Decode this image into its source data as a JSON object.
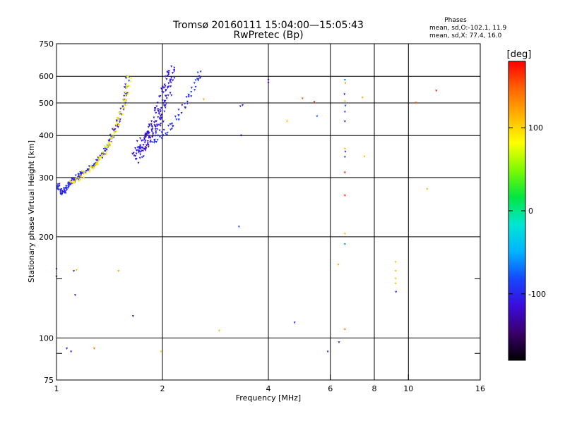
{
  "chart_data": {
    "type": "scatter",
    "title": "Tromsø 20160111 15:04:00—15:05:43",
    "subtitle": "RwPretec (Bp)",
    "xlabel": "Frequency [MHz]",
    "ylabel": "Stationary phase Virtual Height [km]",
    "x_scale": "log2",
    "y_scale": "log",
    "xlim": [
      1,
      16
    ],
    "ylim": [
      75,
      750
    ],
    "x_ticks": [
      {
        "value": 1,
        "label": "1"
      },
      {
        "value": 2,
        "label": "2"
      },
      {
        "value": 4,
        "label": "4"
      },
      {
        "value": 6,
        "label": "6"
      },
      {
        "value": 8,
        "label": "8"
      },
      {
        "value": 10,
        "label": "10"
      },
      {
        "value": 16,
        "label": "16"
      }
    ],
    "y_ticks": [
      {
        "value": 75,
        "label": "75"
      },
      {
        "value": 100,
        "label": "100"
      },
      {
        "value": 200,
        "label": "200"
      },
      {
        "value": 300,
        "label": "300"
      },
      {
        "value": 400,
        "label": "400"
      },
      {
        "value": 500,
        "label": "500"
      },
      {
        "value": 600,
        "label": "600"
      },
      {
        "value": 750,
        "label": "750"
      }
    ],
    "x_gridlines": [
      2,
      4,
      6,
      8,
      10
    ],
    "y_gridlines": [
      100,
      200,
      300,
      400,
      500,
      600
    ],
    "y_minor_ticks": [
      90,
      150
    ],
    "grid": true,
    "phases_box": {
      "title": "Phases",
      "line1": "mean, sd,O:-102.1, 11.9",
      "line2": "mean, sd,X: 77.4, 16.0"
    },
    "colorbar": {
      "label": "[deg]",
      "range": [
        -180,
        180
      ],
      "ticks": [
        {
          "value": 100,
          "label": "100"
        },
        {
          "value": 0,
          "label": "0"
        },
        {
          "value": -100,
          "label": "-100"
        }
      ],
      "colors": [
        "#000000",
        "#3a006a",
        "#3b0bdc",
        "#1548ff",
        "#00b4ff",
        "#00e6d2",
        "#00e640",
        "#7dfa00",
        "#ffff00",
        "#ffb400",
        "#ff6400",
        "#ff0000"
      ]
    },
    "trace_o_low": {
      "phase": -100,
      "points": [
        [
          1.0,
          280
        ],
        [
          1.01,
          284
        ],
        [
          1.02,
          277
        ],
        [
          1.03,
          272
        ],
        [
          1.04,
          270
        ],
        [
          1.05,
          272
        ],
        [
          1.06,
          275
        ],
        [
          1.07,
          280
        ],
        [
          1.08,
          285
        ],
        [
          1.09,
          288
        ],
        [
          1.1,
          290
        ],
        [
          1.11,
          293
        ],
        [
          1.12,
          295
        ],
        [
          1.13,
          297
        ],
        [
          1.14,
          300
        ],
        [
          1.15,
          302
        ],
        [
          1.16,
          304
        ],
        [
          1.17,
          306
        ],
        [
          1.18,
          308
        ],
        [
          1.2,
          311
        ],
        [
          1.22,
          315
        ],
        [
          1.25,
          321
        ],
        [
          1.28,
          328
        ],
        [
          1.3,
          334
        ],
        [
          1.32,
          340
        ],
        [
          1.34,
          348
        ],
        [
          1.36,
          356
        ],
        [
          1.38,
          364
        ],
        [
          1.4,
          373
        ],
        [
          1.42,
          385
        ],
        [
          1.44,
          398
        ],
        [
          1.46,
          412
        ],
        [
          1.48,
          428
        ],
        [
          1.5,
          445
        ],
        [
          1.52,
          463
        ],
        [
          1.54,
          483
        ],
        [
          1.56,
          505
        ],
        [
          1.57,
          530
        ],
        [
          1.58,
          560
        ],
        [
          1.59,
          590
        ]
      ]
    },
    "trace_x_low": {
      "phase": 90,
      "points": [
        [
          1.1,
          288
        ],
        [
          1.12,
          292
        ],
        [
          1.15,
          297
        ],
        [
          1.18,
          304
        ],
        [
          1.2,
          308
        ],
        [
          1.23,
          313
        ],
        [
          1.26,
          320
        ],
        [
          1.29,
          327
        ],
        [
          1.31,
          333
        ],
        [
          1.33,
          340
        ],
        [
          1.35,
          348
        ],
        [
          1.37,
          356
        ],
        [
          1.39,
          366
        ],
        [
          1.41,
          376
        ],
        [
          1.43,
          388
        ],
        [
          1.45,
          401
        ],
        [
          1.47,
          415
        ],
        [
          1.49,
          431
        ],
        [
          1.51,
          448
        ],
        [
          1.53,
          466
        ],
        [
          1.55,
          486
        ],
        [
          1.57,
          508
        ],
        [
          1.59,
          532
        ],
        [
          1.6,
          558
        ],
        [
          1.61,
          588
        ]
      ]
    },
    "trace_o_high": {
      "phase": -110,
      "points": [
        [
          1.68,
          350
        ],
        [
          1.7,
          355
        ],
        [
          1.72,
          360
        ],
        [
          1.74,
          366
        ],
        [
          1.76,
          372
        ],
        [
          1.78,
          378
        ],
        [
          1.8,
          385
        ],
        [
          1.82,
          392
        ],
        [
          1.84,
          400
        ],
        [
          1.86,
          408
        ],
        [
          1.88,
          418
        ],
        [
          1.9,
          428
        ],
        [
          1.92,
          440
        ],
        [
          1.94,
          452
        ],
        [
          1.96,
          466
        ],
        [
          1.98,
          480
        ],
        [
          2.0,
          496
        ],
        [
          2.02,
          512
        ],
        [
          2.04,
          530
        ],
        [
          2.06,
          548
        ],
        [
          2.08,
          568
        ],
        [
          2.1,
          588
        ],
        [
          2.12,
          606
        ]
      ]
    },
    "trace_o_upper": {
      "phase": -95,
      "points": [
        [
          1.9,
          385
        ],
        [
          1.95,
          392
        ],
        [
          2.0,
          400
        ],
        [
          2.05,
          410
        ],
        [
          2.1,
          422
        ],
        [
          2.15,
          435
        ],
        [
          2.2,
          450
        ],
        [
          2.25,
          468
        ],
        [
          2.3,
          488
        ],
        [
          2.35,
          510
        ],
        [
          2.4,
          535
        ],
        [
          2.45,
          560
        ],
        [
          2.5,
          585
        ],
        [
          2.55,
          605
        ]
      ]
    },
    "scatter_points": [
      {
        "x": 1.0,
        "y": 160,
        "phase": -105
      },
      {
        "x": 1.0,
        "y": 152,
        "phase": -120
      },
      {
        "x": 1.07,
        "y": 93,
        "phase": -110
      },
      {
        "x": 1.1,
        "y": 91,
        "phase": -110
      },
      {
        "x": 1.12,
        "y": 158,
        "phase": -100
      },
      {
        "x": 1.14,
        "y": 159,
        "phase": 110
      },
      {
        "x": 1.13,
        "y": 134,
        "phase": -105
      },
      {
        "x": 1.28,
        "y": 93,
        "phase": 140
      },
      {
        "x": 1.5,
        "y": 158,
        "phase": 120
      },
      {
        "x": 1.65,
        "y": 116,
        "phase": -110
      },
      {
        "x": 1.98,
        "y": 91,
        "phase": 100
      },
      {
        "x": 2.62,
        "y": 512,
        "phase": 120
      },
      {
        "x": 2.9,
        "y": 105,
        "phase": 110
      },
      {
        "x": 3.33,
        "y": 488,
        "phase": -95
      },
      {
        "x": 3.38,
        "y": 492,
        "phase": -100
      },
      {
        "x": 3.35,
        "y": 400,
        "phase": -115
      },
      {
        "x": 3.3,
        "y": 214,
        "phase": -90
      },
      {
        "x": 4.0,
        "y": 585,
        "phase": -120
      },
      {
        "x": 4.0,
        "y": 572,
        "phase": -120
      },
      {
        "x": 4.52,
        "y": 440,
        "phase": 110
      },
      {
        "x": 4.75,
        "y": 111,
        "phase": -105
      },
      {
        "x": 5.0,
        "y": 515,
        "phase": 150
      },
      {
        "x": 5.4,
        "y": 503,
        "phase": 170
      },
      {
        "x": 5.5,
        "y": 456,
        "phase": -75
      },
      {
        "x": 5.9,
        "y": 91,
        "phase": -105
      },
      {
        "x": 6.35,
        "y": 97,
        "phase": -100
      },
      {
        "x": 6.32,
        "y": 165,
        "phase": 120
      },
      {
        "x": 6.6,
        "y": 585,
        "phase": -60
      },
      {
        "x": 6.62,
        "y": 572,
        "phase": 120
      },
      {
        "x": 6.58,
        "y": 530,
        "phase": -110
      },
      {
        "x": 6.6,
        "y": 505,
        "phase": 110
      },
      {
        "x": 6.62,
        "y": 490,
        "phase": -80
      },
      {
        "x": 6.6,
        "y": 470,
        "phase": -90
      },
      {
        "x": 6.6,
        "y": 440,
        "phase": -120
      },
      {
        "x": 6.6,
        "y": 365,
        "phase": 110
      },
      {
        "x": 6.62,
        "y": 358,
        "phase": -90
      },
      {
        "x": 6.6,
        "y": 345,
        "phase": -90
      },
      {
        "x": 6.6,
        "y": 310,
        "phase": 170
      },
      {
        "x": 6.6,
        "y": 265,
        "phase": 170
      },
      {
        "x": 6.6,
        "y": 204,
        "phase": 110
      },
      {
        "x": 6.6,
        "y": 190,
        "phase": -60
      },
      {
        "x": 6.6,
        "y": 106,
        "phase": 140
      },
      {
        "x": 7.4,
        "y": 518,
        "phase": 120
      },
      {
        "x": 7.5,
        "y": 346,
        "phase": 110
      },
      {
        "x": 9.2,
        "y": 168,
        "phase": 110
      },
      {
        "x": 9.2,
        "y": 158,
        "phase": 110
      },
      {
        "x": 9.2,
        "y": 150,
        "phase": 110
      },
      {
        "x": 9.2,
        "y": 145,
        "phase": 110
      },
      {
        "x": 9.22,
        "y": 137,
        "phase": -100
      },
      {
        "x": 10.5,
        "y": 500,
        "phase": 150
      },
      {
        "x": 11.3,
        "y": 277,
        "phase": 115
      },
      {
        "x": 12.0,
        "y": 543,
        "phase": 170
      }
    ]
  }
}
